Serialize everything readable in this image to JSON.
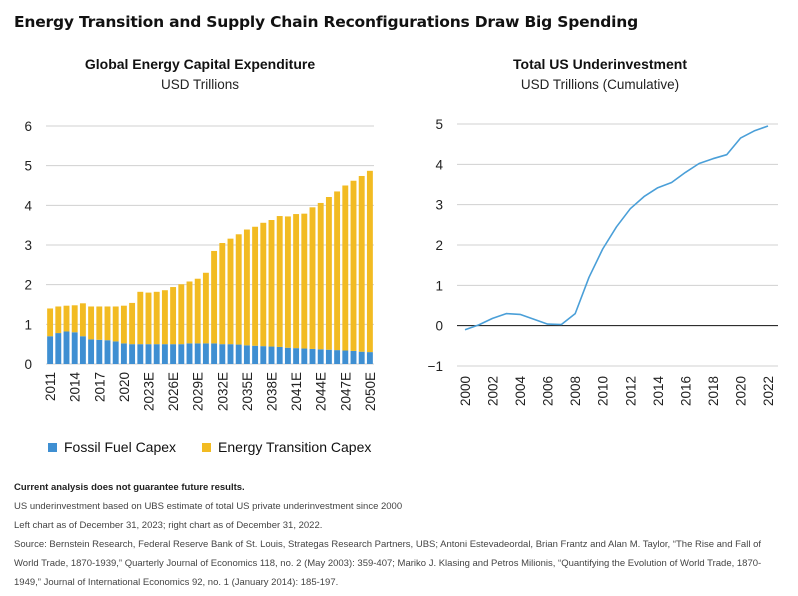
{
  "title": "Energy Transition and Supply Chain Reconfigurations Draw Big Spending",
  "colors": {
    "fossil": "#3f8fd2",
    "transition": "#f2bb22",
    "line": "#4a9fd8",
    "grid": "#d0d0d0"
  },
  "chart_data": [
    {
      "type": "bar",
      "stacked": true,
      "title": "Global Energy Capital Expenditure",
      "subtitle": "USD Trillions",
      "ylim": [
        0,
        6
      ],
      "yticks": [
        "0",
        "1",
        "2",
        "3",
        "4",
        "5",
        "6"
      ],
      "grid": true,
      "legend_position": "bottom",
      "categories": [
        "2011",
        "2012",
        "2013",
        "2014",
        "2015",
        "2016",
        "2017",
        "2018",
        "2019",
        "2020",
        "2021",
        "2022",
        "2023E",
        "2024E",
        "2025E",
        "2026E",
        "2027E",
        "2028E",
        "2029E",
        "2030E",
        "2031E",
        "2032E",
        "2033E",
        "2034E",
        "2035E",
        "2036E",
        "2037E",
        "2038E",
        "2039E",
        "2040E",
        "2041E",
        "2042E",
        "2043E",
        "2044E",
        "2045E",
        "2046E",
        "2047E",
        "2048E",
        "2049E",
        "2050E"
      ],
      "xtick_labels": [
        "2011",
        "2014",
        "2017",
        "2020",
        "2023E",
        "2026E",
        "2029E",
        "2032E",
        "2035E",
        "2038E",
        "2041E",
        "2044E",
        "2047E",
        "2050E"
      ],
      "series": [
        {
          "name": "Fossil Fuel Capex",
          "values": [
            0.7,
            0.78,
            0.82,
            0.8,
            0.7,
            0.62,
            0.61,
            0.6,
            0.57,
            0.52,
            0.5,
            0.5,
            0.5,
            0.5,
            0.5,
            0.5,
            0.5,
            0.52,
            0.52,
            0.52,
            0.52,
            0.5,
            0.5,
            0.49,
            0.47,
            0.46,
            0.45,
            0.44,
            0.43,
            0.41,
            0.4,
            0.39,
            0.38,
            0.37,
            0.36,
            0.35,
            0.34,
            0.33,
            0.31,
            0.3
          ]
        },
        {
          "name": "Energy Transition Capex",
          "values": [
            0.7,
            0.67,
            0.65,
            0.68,
            0.83,
            0.83,
            0.84,
            0.85,
            0.88,
            0.95,
            1.04,
            1.32,
            1.3,
            1.32,
            1.36,
            1.44,
            1.51,
            1.56,
            1.63,
            1.78,
            2.33,
            2.55,
            2.66,
            2.78,
            2.92,
            3.0,
            3.11,
            3.19,
            3.3,
            3.31,
            3.38,
            3.4,
            3.57,
            3.69,
            3.85,
            4.0,
            4.16,
            4.29,
            4.43,
            4.57
          ]
        }
      ]
    },
    {
      "type": "line",
      "title": "Total US Underinvestment",
      "subtitle": "USD Trillions (Cumulative)",
      "ylim": [
        -1,
        5
      ],
      "yticks": [
        "−1",
        "0",
        "1",
        "2",
        "3",
        "4",
        "5"
      ],
      "xlim": [
        2000,
        2022
      ],
      "xtick_labels": [
        "2000",
        "2002",
        "2004",
        "2006",
        "2008",
        "2010",
        "2012",
        "2014",
        "2016",
        "2018",
        "2020",
        "2022"
      ],
      "grid": true,
      "series": [
        {
          "x": [
            2000,
            2001,
            2002,
            2003,
            2004,
            2005,
            2006,
            2007,
            2008,
            2009,
            2010,
            2011,
            2012,
            2013,
            2014,
            2015,
            2016,
            2017,
            2018,
            2019,
            2020,
            2021,
            2022
          ],
          "y": [
            -0.1,
            0.02,
            0.18,
            0.3,
            0.28,
            0.16,
            0.04,
            0.03,
            0.3,
            1.2,
            1.9,
            2.45,
            2.9,
            3.2,
            3.42,
            3.55,
            3.8,
            4.02,
            4.14,
            4.24,
            4.65,
            4.83,
            4.95
          ]
        }
      ]
    }
  ],
  "legend": [
    {
      "label": "Fossil Fuel Capex"
    },
    {
      "label": "Energy Transition Capex"
    }
  ],
  "notes": {
    "disclaimer": "Current analysis does not guarantee future results.",
    "line1": "US underinvestment based on UBS estimate of total US private underinvestment since 2000",
    "line2": "Left chart as of December 31, 2023; right chart as of December 31, 2022.",
    "source": "Source: Bernstein Research, Federal Reserve Bank of St. Louis, Strategas Research Partners, UBS; Antoni Estevadeordal, Brian Frantz and Alan M. Taylor, “The Rise and Fall of World Trade, 1870-1939,” Quarterly Journal of Economics 118, no. 2 (May 2003): 359-407; Mariko J. Klasing and Petros Milionis, “Quantifying the Evolution of World Trade, 1870-1949,” Journal of International Economics 92, no. 1 (January 2014): 185-197."
  }
}
